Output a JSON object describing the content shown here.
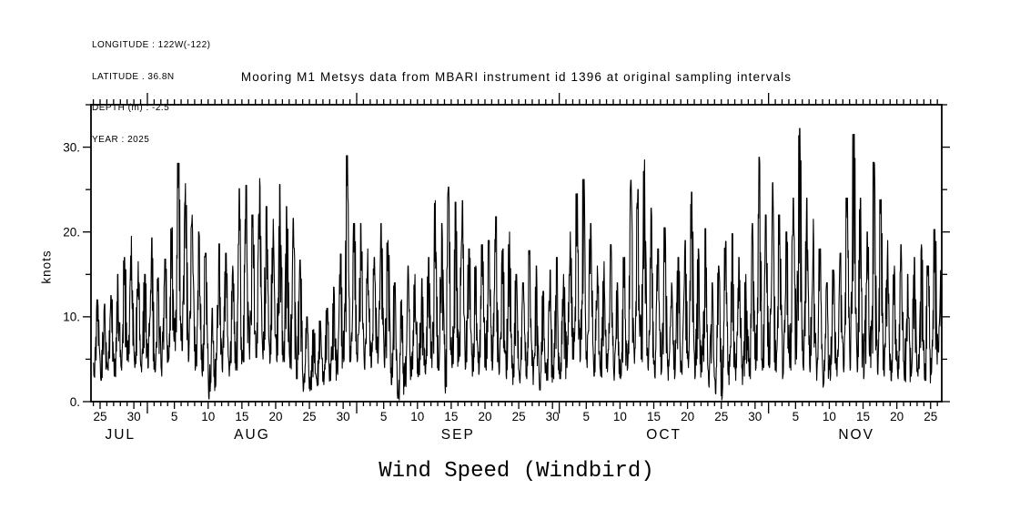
{
  "meta": {
    "lines": [
      "LONGITUDE : 122W(-122)",
      "LATITUDE . 36.8N",
      "DEPTH (m) : -2.5",
      "YEAR : 2025"
    ]
  },
  "title": "Mooring M1 Metsys data from MBARI instrument id 1396 at original sampling intervals",
  "chart_data": {
    "type": "line",
    "title": "Mooring M1 Metsys data from MBARI instrument id 1396 at original sampling intervals",
    "ylabel": "knots",
    "xlabel": "Wind Speed (Windbird)",
    "ylim": [
      0,
      35
    ],
    "ytick_values": [
      0,
      10,
      20,
      30
    ],
    "ytick_labels": [
      "0.",
      "10.",
      "20.",
      "30."
    ],
    "y_minor_step": 5,
    "grid": false,
    "line_color": "#000000",
    "background": "#ffffff",
    "x_axis": {
      "start": "2025-07-24",
      "end": "2025-11-26",
      "day_label_interval": 5,
      "months": [
        {
          "label": "JUL",
          "first_day": 24,
          "days_shown": 8
        },
        {
          "label": "AUG",
          "first_day": 1,
          "days_shown": 31
        },
        {
          "label": "SEP",
          "first_day": 1,
          "days_shown": 30
        },
        {
          "label": "OCT",
          "first_day": 1,
          "days_shown": 31
        },
        {
          "label": "NOV",
          "first_day": 1,
          "days_shown": 26
        }
      ]
    },
    "series": [
      {
        "name": "wind_speed",
        "units": "knots",
        "description": "High-frequency wind speed; values below are daily max and daily min envelope read from plot, one pair per day Jul 24 - Nov 26 2025",
        "daily_max": [
          12.0,
          11.5,
          12.5,
          15.0,
          17.0,
          19.5,
          16.5,
          15.0,
          19.3,
          14.6,
          16.8,
          20.5,
          28.1,
          25.7,
          22.0,
          20.0,
          17.5,
          11.0,
          18.6,
          17.5,
          16.0,
          25.1,
          25.5,
          22.0,
          26.3,
          23.0,
          21.5,
          25.6,
          23.0,
          21.6,
          16.7,
          10.0,
          8.5,
          9.5,
          11.0,
          13.5,
          17.4,
          29.0,
          21.0,
          21.0,
          18.0,
          17.0,
          21.0,
          19.0,
          14.0,
          12.0,
          16.0,
          15.0,
          14.5,
          17.0,
          23.7,
          21.0,
          25.3,
          23.5,
          23.7,
          18.0,
          16.0,
          18.5,
          19.0,
          21.8,
          18.0,
          20.0,
          15.0,
          14.0,
          17.8,
          16.0,
          13.0,
          15.5,
          17.0,
          15.0,
          20.0,
          24.5,
          26.2,
          21.0,
          16.0,
          16.5,
          18.5,
          14.0,
          17.0,
          26.1,
          25.0,
          28.5,
          22.8,
          18.0,
          20.5,
          14.0,
          17.0,
          19.0,
          24.7,
          18.0,
          20.4,
          14.0,
          16.0,
          18.9,
          19.8,
          17.0,
          15.0,
          21.0,
          28.8,
          22.0,
          25.8,
          22.0,
          20.0,
          24.0,
          32.2,
          24.0,
          21.5,
          18.0,
          14.0,
          15.5,
          17.5,
          24.0,
          31.5,
          24.0,
          20.0,
          28.2,
          23.8,
          19.0,
          16.0,
          18.5,
          15.0,
          17.0,
          18.5,
          16.0,
          20.3,
          17.3
        ],
        "daily_min": [
          3.0,
          2.5,
          4.0,
          3.0,
          4.0,
          5.0,
          4.0,
          3.5,
          4.0,
          3.5,
          3.0,
          5.0,
          6.0,
          6.0,
          5.0,
          4.0,
          3.0,
          0.3,
          2.0,
          3.5,
          3.0,
          4.0,
          5.0,
          5.0,
          5.5,
          5.0,
          4.5,
          5.0,
          5.0,
          4.0,
          3.0,
          1.5,
          1.5,
          2.0,
          2.0,
          2.5,
          3.5,
          5.0,
          5.0,
          5.0,
          4.0,
          4.0,
          4.5,
          4.0,
          2.0,
          0.4,
          2.0,
          3.0,
          3.0,
          3.5,
          4.0,
          4.0,
          1.0,
          4.0,
          5.0,
          4.0,
          3.0,
          3.5,
          4.0,
          4.0,
          3.5,
          3.0,
          2.0,
          2.5,
          3.0,
          2.0,
          1.5,
          2.5,
          3.0,
          3.0,
          4.0,
          5.0,
          5.0,
          4.0,
          3.0,
          3.0,
          3.5,
          2.5,
          3.0,
          4.0,
          4.5,
          5.0,
          4.0,
          3.0,
          3.5,
          2.5,
          3.0,
          3.5,
          4.0,
          3.0,
          3.5,
          2.0,
          1.0,
          0.5,
          2.0,
          2.5,
          2.0,
          3.0,
          4.0,
          4.0,
          4.0,
          3.5,
          3.0,
          4.0,
          5.0,
          4.0,
          3.5,
          2.5,
          2.0,
          2.5,
          3.0,
          3.5,
          4.0,
          3.5,
          3.0,
          4.0,
          3.5,
          3.0,
          2.5,
          3.0,
          2.5,
          3.0,
          3.0,
          2.5,
          3.5,
          6.0
        ]
      }
    ]
  }
}
